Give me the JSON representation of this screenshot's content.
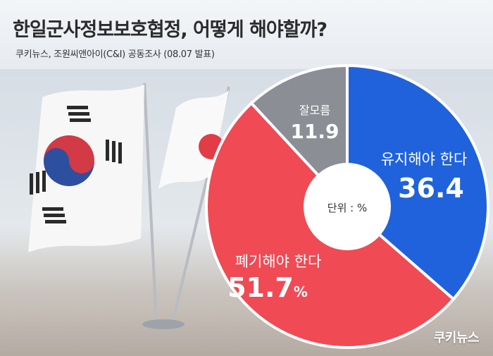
{
  "header": {
    "title": "한일군사정보보호협정, 어떻게 해야할까?",
    "subtitle": "쿠키뉴스, 조원씨앤아이(C&I) 공동조사 (08.07 발표)"
  },
  "chart_data": {
    "type": "pie",
    "style": "donut",
    "title": "한일군사정보보호협정, 어떻게 해야할까?",
    "unit_label": "단위 : %",
    "slices": [
      {
        "label": "유지해야 한다",
        "value": 36.4,
        "value_text": "36.4",
        "color": "#1f62dc"
      },
      {
        "label": "폐기해야 한다",
        "value": 51.7,
        "value_text": "51.7",
        "suffix": "%",
        "color": "#f04a55"
      },
      {
        "label": "잘모름",
        "value": 11.9,
        "value_text": "11.9",
        "color": "#8b8e95"
      }
    ]
  },
  "background": {
    "description_icons": [
      "korea-flag-icon",
      "japan-flag-icon"
    ]
  },
  "brand": {
    "label": "쿠키뉴스"
  }
}
